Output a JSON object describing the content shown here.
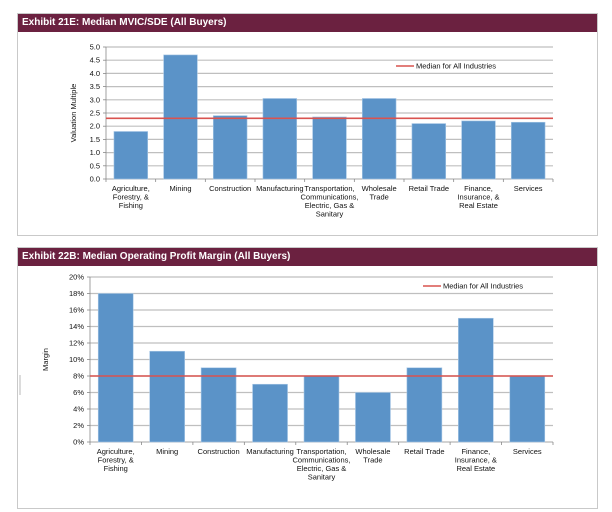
{
  "chart_data": [
    {
      "type": "bar",
      "title": "Exhibit 21E: Median MVIC/SDE (All Buyers)",
      "xlabel": "",
      "ylabel": "Valuation Multiple",
      "ylim": [
        0,
        5
      ],
      "yticks": [
        "0.0",
        "0.5",
        "1.0",
        "1.5",
        "2.0",
        "2.5",
        "3.0",
        "3.5",
        "4.0",
        "4.5",
        "5.0"
      ],
      "ytick_values": [
        0,
        0.5,
        1,
        1.5,
        2,
        2.5,
        3,
        3.5,
        4,
        4.5,
        5
      ],
      "grid": true,
      "legend_position": "top-right",
      "categories": [
        [
          "Agriculture,",
          "Forestry, &",
          "Fishing"
        ],
        [
          "Mining"
        ],
        [
          "Construction"
        ],
        [
          "Manufacturing"
        ],
        [
          "Transportation,",
          "Communications,",
          "Electric, Gas &",
          "Sanitary"
        ],
        [
          "Wholesale",
          "Trade"
        ],
        [
          "Retail Trade"
        ],
        [
          "Finance,",
          "Insurance, &",
          "Real Estate"
        ],
        [
          "Services"
        ]
      ],
      "series": [
        {
          "name": "Median MVIC/SDE",
          "values": [
            1.8,
            4.7,
            2.4,
            3.05,
            2.35,
            3.05,
            2.1,
            2.2,
            2.15
          ],
          "color": "#5b93c8"
        }
      ],
      "reference_line": {
        "name": "Median for All Industries",
        "value": 2.3,
        "color": "#d9534f"
      }
    },
    {
      "type": "bar",
      "title": "Exhibit 22B: Median Operating Profit Margin (All Buyers)",
      "xlabel": "",
      "ylabel": "Margin",
      "ylim": [
        0,
        20
      ],
      "yticks": [
        "0%",
        "2%",
        "4%",
        "6%",
        "8%",
        "10%",
        "12%",
        "14%",
        "16%",
        "18%",
        "20%"
      ],
      "ytick_values": [
        0,
        2,
        4,
        6,
        8,
        10,
        12,
        14,
        16,
        18,
        20
      ],
      "grid": true,
      "legend_position": "top-right",
      "categories": [
        [
          "Agriculture,",
          "Forestry, &",
          "Fishing"
        ],
        [
          "Mining"
        ],
        [
          "Construction"
        ],
        [
          "Manufacturing"
        ],
        [
          "Transportation,",
          "Communications,",
          "Electric, Gas &",
          "Sanitary"
        ],
        [
          "Wholesale",
          "Trade"
        ],
        [
          "Retail Trade"
        ],
        [
          "Finance,",
          "Insurance, &",
          "Real Estate"
        ],
        [
          "Services"
        ]
      ],
      "series": [
        {
          "name": "Median Operating Profit Margin",
          "values": [
            18,
            11,
            9,
            7,
            8,
            6,
            9,
            15,
            8
          ],
          "color": "#5b93c8"
        }
      ],
      "reference_line": {
        "name": "Median for All Industries",
        "value": 8,
        "color": "#d9534f"
      }
    }
  ]
}
